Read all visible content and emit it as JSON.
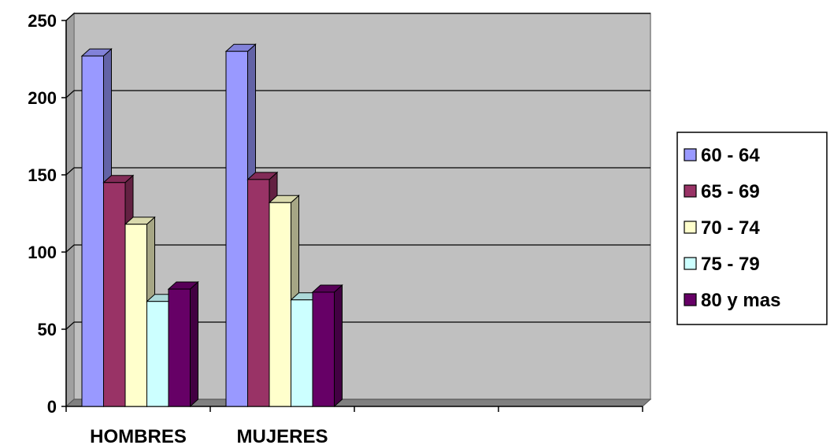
{
  "chart_data": {
    "type": "bar",
    "categories": [
      "HOMBRES",
      "MUJERES",
      "",
      ""
    ],
    "series": [
      {
        "name": "60 - 64",
        "values": [
          227,
          230,
          null,
          null
        ]
      },
      {
        "name": "65 - 69",
        "values": [
          145,
          147,
          null,
          null
        ]
      },
      {
        "name": "70 - 74",
        "values": [
          118,
          132,
          null,
          null
        ]
      },
      {
        "name": "75 - 79",
        "values": [
          68,
          69,
          null,
          null
        ]
      },
      {
        "name": "80 y mas",
        "values": [
          76,
          74,
          null,
          null
        ]
      }
    ],
    "title": "",
    "xlabel": "",
    "ylabel": "",
    "ylim": [
      0,
      250
    ],
    "yticks": [
      "0",
      "50",
      "100",
      "150",
      "200",
      "250"
    ],
    "grid": true,
    "legend": "right",
    "three_d": true,
    "colors": {
      "plot_background": "#c0c0c0",
      "series": [
        "#9999ff",
        "#993366",
        "#ffffcc",
        "#ccffff",
        "#660066"
      ]
    }
  }
}
